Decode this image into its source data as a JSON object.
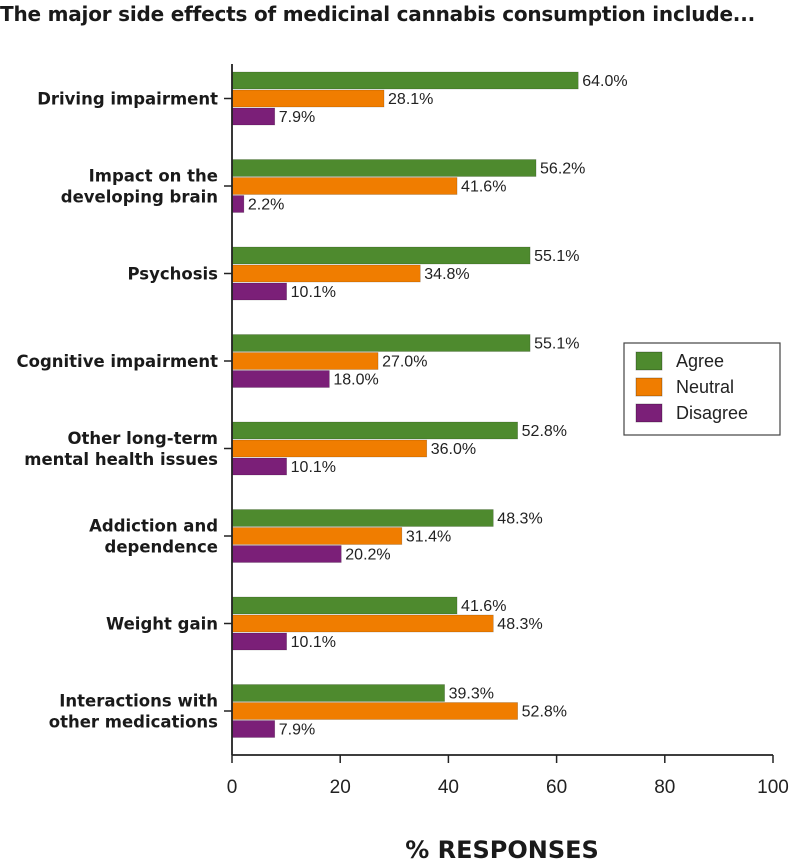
{
  "chart_data": {
    "type": "bar",
    "orientation": "horizontal",
    "title": "The major side effects of medicinal cannabis consumption include...",
    "xlabel": "% RESPONSES",
    "ylabel": "",
    "xlim": [
      0,
      100
    ],
    "xticks": [
      0,
      20,
      40,
      60,
      80,
      100
    ],
    "grid": false,
    "legend_position": "right",
    "categories": [
      [
        "Driving impairment"
      ],
      [
        "Impact on the",
        "developing brain"
      ],
      [
        "Psychosis"
      ],
      [
        "Cognitive impairment"
      ],
      [
        "Other long-term",
        "mental health issues"
      ],
      [
        "Addiction and",
        "dependence"
      ],
      [
        "Weight gain"
      ],
      [
        "Interactions with",
        "other medications"
      ]
    ],
    "series": [
      {
        "name": "Agree",
        "color": "#4e8a2e",
        "values": [
          64.0,
          56.2,
          55.1,
          55.1,
          52.8,
          48.3,
          41.6,
          39.3
        ],
        "labels": [
          "64.0%",
          "56.2%",
          "55.1%",
          "55.1%",
          "52.8%",
          "48.3%",
          "41.6%",
          "39.3%"
        ]
      },
      {
        "name": "Neutral",
        "color": "#f07d00",
        "values": [
          28.1,
          41.6,
          34.8,
          27.0,
          36.0,
          31.4,
          48.3,
          52.8
        ],
        "labels": [
          "28.1%",
          "41.6%",
          "34.8%",
          "27.0%",
          "36.0%",
          "31.4%",
          "48.3%",
          "52.8%"
        ]
      },
      {
        "name": "Disagree",
        "color": "#7b1f78",
        "values": [
          7.9,
          2.2,
          10.1,
          18.0,
          10.1,
          20.2,
          10.1,
          7.9
        ],
        "labels": [
          "7.9%",
          "2.2%",
          "10.1%",
          "18.0%",
          "10.1%",
          "20.2%",
          "10.1%",
          "7.9%"
        ]
      }
    ]
  }
}
